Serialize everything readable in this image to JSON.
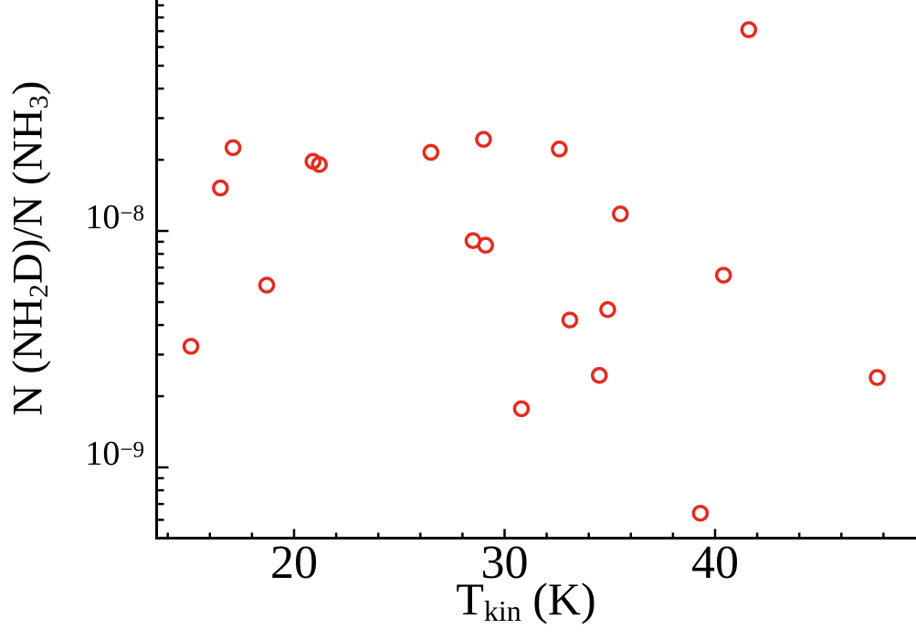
{
  "figure": {
    "background": "#ffffff",
    "axis_color": "#000000"
  },
  "chart_data": {
    "type": "scatter",
    "title": "",
    "xlabel": {
      "main": "T",
      "sub": "kin",
      "rest": " (K)"
    },
    "ylabel": {
      "p1": "N (NH",
      "s1": "2",
      "p2": "D)/N (NH",
      "s2": "3",
      "p3": ")"
    },
    "x_axis": {
      "scale": "linear",
      "min": 13.5,
      "max": 49.5,
      "ticks_major": [
        20,
        30,
        40
      ],
      "tick_labels": [
        "20",
        "30",
        "40"
      ],
      "minor_step": 2,
      "minor_min": 14,
      "minor_max": 48
    },
    "y_axis": {
      "scale": "log",
      "min": 5e-10,
      "max": 9.5e-08,
      "ticks_major": [
        1e-08,
        1e-09
      ],
      "tick_labels": [
        {
          "base": "10",
          "exp": "−8"
        },
        {
          "base": "10",
          "exp": "−9"
        }
      ]
    },
    "grid": false,
    "legend": "none",
    "marker": {
      "shape": "open-circle",
      "color": "#e62a1e"
    },
    "points": [
      {
        "x": 15.1,
        "y": 3.25e-09
      },
      {
        "x": 16.5,
        "y": 1.52e-08
      },
      {
        "x": 17.1,
        "y": 2.25e-08
      },
      {
        "x": 18.7,
        "y": 5.9e-09
      },
      {
        "x": 20.9,
        "y": 1.97e-08
      },
      {
        "x": 21.2,
        "y": 1.91e-08
      },
      {
        "x": 26.5,
        "y": 2.15e-08
      },
      {
        "x": 28.5,
        "y": 9.1e-09
      },
      {
        "x": 29.0,
        "y": 2.44e-08
      },
      {
        "x": 29.1,
        "y": 8.7e-09
      },
      {
        "x": 30.8,
        "y": 1.77e-09
      },
      {
        "x": 32.6,
        "y": 2.22e-08
      },
      {
        "x": 33.1,
        "y": 4.2e-09
      },
      {
        "x": 34.5,
        "y": 2.45e-09
      },
      {
        "x": 34.9,
        "y": 4.65e-09
      },
      {
        "x": 35.5,
        "y": 1.18e-08
      },
      {
        "x": 39.3,
        "y": 6.4e-10
      },
      {
        "x": 40.4,
        "y": 6.5e-09
      },
      {
        "x": 41.6,
        "y": 7.1e-08
      },
      {
        "x": 47.7,
        "y": 2.4e-09
      }
    ]
  }
}
